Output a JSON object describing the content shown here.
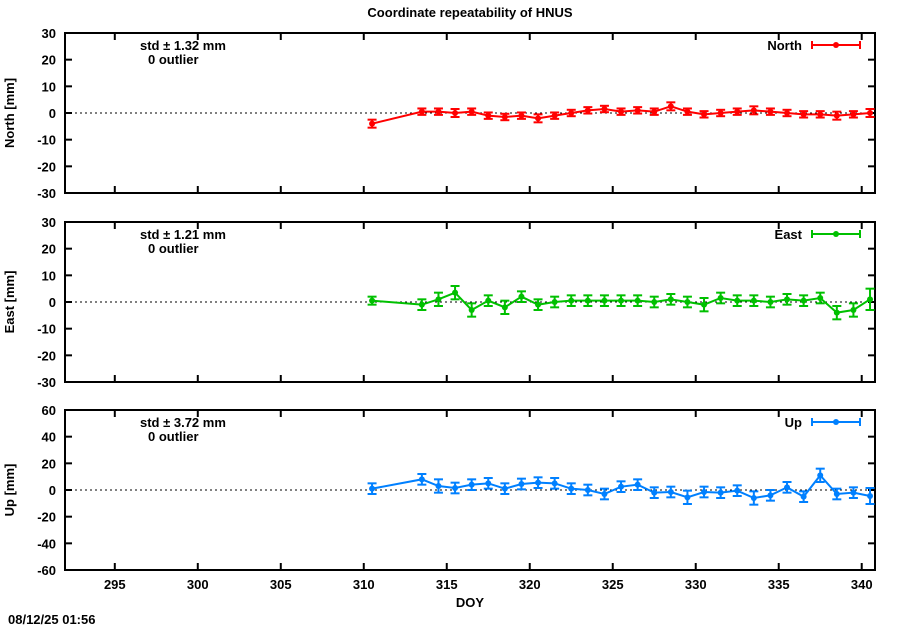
{
  "timestamp": "08/12/25 01:56",
  "chart_data": {
    "type": "line",
    "style": "points-with-yerrorbars, 3 stacked panels, dotted zero line",
    "title": "Coordinate repeatability of HNUS",
    "xlabel": "DOY",
    "x_range": [
      292,
      340.8
    ],
    "x_ticks": [
      295,
      300,
      305,
      310,
      315,
      320,
      325,
      330,
      335,
      340
    ],
    "grid": "off",
    "legend_position": "inside top-right of each panel",
    "x": [
      310.5,
      313.5,
      314.5,
      315.5,
      316.5,
      317.5,
      318.5,
      319.5,
      320.5,
      321.5,
      322.5,
      323.5,
      324.5,
      325.5,
      326.5,
      327.5,
      328.5,
      329.5,
      330.5,
      331.5,
      332.5,
      333.5,
      334.5,
      335.5,
      336.5,
      337.5,
      338.5,
      339.5,
      340.5
    ],
    "panels": [
      {
        "name": "North",
        "ylabel": "North [mm]",
        "legend_label": "North",
        "std_label": "std ± 1.32 mm",
        "outlier_label": "0 outlier",
        "color": "#ff0000",
        "y_range": [
          -30,
          30
        ],
        "y_ticks": [
          -30,
          -20,
          -10,
          0,
          10,
          20,
          30
        ],
        "values": [
          -4.0,
          0.5,
          0.5,
          0.0,
          0.5,
          -1.0,
          -1.5,
          -1.0,
          -2.0,
          -1.0,
          0.0,
          1.0,
          1.5,
          0.5,
          1.0,
          0.5,
          2.5,
          0.5,
          -0.5,
          0.0,
          0.5,
          1.0,
          0.5,
          0.0,
          -0.5,
          -0.5,
          -1.0,
          -0.5,
          0.0
        ],
        "errors": [
          1.5,
          1.2,
          1.2,
          1.5,
          1.2,
          1.2,
          1.2,
          1.2,
          1.5,
          1.2,
          1.2,
          1.2,
          1.2,
          1.2,
          1.2,
          1.2,
          1.5,
          1.2,
          1.2,
          1.2,
          1.2,
          1.5,
          1.2,
          1.2,
          1.2,
          1.2,
          1.5,
          1.2,
          1.5
        ]
      },
      {
        "name": "East",
        "ylabel": "East [mm]",
        "legend_label": "East",
        "std_label": "std ± 1.21 mm",
        "outlier_label": "0 outlier",
        "color": "#00c000",
        "y_range": [
          -30,
          30
        ],
        "y_ticks": [
          -30,
          -20,
          -10,
          0,
          10,
          20,
          30
        ],
        "values": [
          0.5,
          -1.0,
          1.0,
          3.5,
          -3.0,
          0.5,
          -2.0,
          2.0,
          -1.0,
          0.0,
          0.5,
          0.5,
          0.5,
          0.5,
          0.5,
          0.0,
          1.0,
          0.0,
          -1.0,
          1.5,
          0.5,
          0.5,
          0.0,
          1.0,
          0.5,
          1.5,
          -4.0,
          -3.0,
          1.0
        ],
        "errors": [
          1.5,
          2.0,
          2.5,
          2.5,
          2.5,
          2.0,
          2.5,
          2.0,
          2.0,
          2.0,
          2.0,
          2.0,
          2.0,
          2.0,
          2.0,
          2.0,
          2.0,
          2.0,
          2.5,
          2.0,
          2.0,
          2.0,
          2.0,
          2.0,
          2.0,
          2.0,
          2.5,
          2.5,
          4.0
        ]
      },
      {
        "name": "Up",
        "ylabel": "Up [mm]",
        "legend_label": "Up",
        "std_label": "std ± 3.72 mm",
        "outlier_label": "0 outlier",
        "color": "#0080ff",
        "y_range": [
          -60,
          60
        ],
        "y_ticks": [
          -60,
          -40,
          -20,
          0,
          20,
          40,
          60
        ],
        "values": [
          1.0,
          8.0,
          3.0,
          1.5,
          4.0,
          5.0,
          1.0,
          4.5,
          5.5,
          5.0,
          1.0,
          0.0,
          -3.0,
          2.5,
          4.0,
          -2.0,
          -1.5,
          -5.5,
          -1.5,
          -2.0,
          -0.5,
          -6.0,
          -4.0,
          2.0,
          -5.0,
          11.0,
          -3.0,
          -2.0,
          -4.5
        ],
        "errors": [
          4.0,
          4.0,
          5.0,
          4.0,
          4.0,
          4.0,
          4.0,
          4.0,
          4.0,
          4.0,
          4.0,
          4.0,
          4.0,
          4.0,
          4.0,
          4.0,
          4.0,
          5.0,
          4.0,
          4.0,
          4.0,
          5.0,
          4.0,
          4.0,
          4.0,
          5.0,
          4.0,
          4.0,
          6.0
        ]
      }
    ]
  }
}
